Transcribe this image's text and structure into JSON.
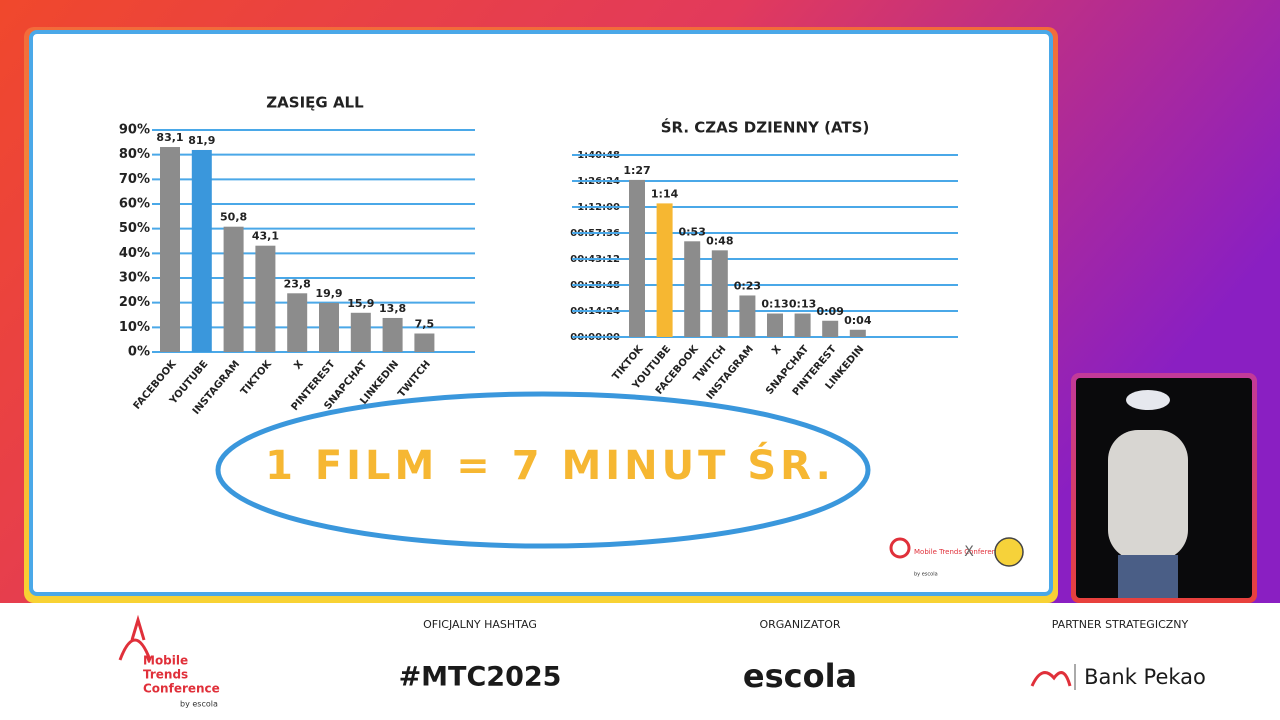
{
  "chart_data": [
    {
      "type": "bar",
      "title": "ZASIĘG ALL",
      "categories": [
        "FACEBOOK",
        "YOUTUBE",
        "INSTAGRAM",
        "TIKTOK",
        "X",
        "PINTEREST",
        "SNAPCHAT",
        "LINKEDIN",
        "TWITCH"
      ],
      "values": [
        83.1,
        81.9,
        50.8,
        43.1,
        23.8,
        19.9,
        15.9,
        13.8,
        7.5
      ],
      "value_labels": [
        "83,1",
        "81,9",
        "50,8",
        "43,1",
        "23,8",
        "19,9",
        "15,9",
        "13,8",
        "7,5"
      ],
      "colors": [
        "#8c8c8c",
        "#3a97dc",
        "#8c8c8c",
        "#8c8c8c",
        "#8c8c8c",
        "#8c8c8c",
        "#8c8c8c",
        "#8c8c8c",
        "#8c8c8c"
      ],
      "ylim": [
        0,
        90
      ],
      "yticks": [
        {
          "value": 0,
          "label": "0%"
        },
        {
          "value": 10,
          "label": "10%"
        },
        {
          "value": 20,
          "label": "20%"
        },
        {
          "value": 30,
          "label": "30%"
        },
        {
          "value": 40,
          "label": "40%"
        },
        {
          "value": 50,
          "label": "50%"
        },
        {
          "value": 60,
          "label": "60%"
        },
        {
          "value": 70,
          "label": "70%"
        },
        {
          "value": 80,
          "label": "80%"
        },
        {
          "value": 90,
          "label": "90%"
        }
      ],
      "grid": true
    },
    {
      "type": "bar",
      "title": "ŚR. CZAS DZIENNY (ATS)",
      "categories": [
        "TIKTOK",
        "YOUTUBE",
        "FACEBOOK",
        "TWITCH",
        "INSTAGRAM",
        "X",
        "SNAPCHAT",
        "PINTEREST",
        "LINKEDIN"
      ],
      "values": [
        87,
        74,
        53,
        48,
        23,
        13,
        13,
        9,
        4
      ],
      "value_labels": [
        "1:27",
        "1:14",
        "0:53",
        "0:48",
        "0:23",
        "0:13",
        "0:13",
        "0:09",
        "0:04"
      ],
      "colors": [
        "#8c8c8c",
        "#f6b732",
        "#8c8c8c",
        "#8c8c8c",
        "#8c8c8c",
        "#8c8c8c",
        "#8c8c8c",
        "#8c8c8c",
        "#8c8c8c"
      ],
      "ylim": [
        0,
        100.8
      ],
      "yticks": [
        {
          "value": 0,
          "label": "00:00:00"
        },
        {
          "value": 14.4,
          "label": "00:14:24"
        },
        {
          "value": 28.8,
          "label": "00:28:48"
        },
        {
          "value": 43.2,
          "label": "00:43:12"
        },
        {
          "value": 57.6,
          "label": "00:57:36"
        },
        {
          "value": 72,
          "label": "1:12:00"
        },
        {
          "value": 86.4,
          "label": "1:26:24"
        },
        {
          "value": 100.8,
          "label": "1:40:48"
        }
      ],
      "grid": true
    }
  ],
  "annotation": "1 FILM = 7 MINUT ŚR.",
  "board_logo": {
    "name": "Mobile Trends Conference",
    "by": "by escola",
    "separator": "X"
  },
  "footer": {
    "logo": {
      "line1": "Mobile",
      "line2": "Trends",
      "line3": "Conference",
      "by": "by escola"
    },
    "hashtag": {
      "label": "OFICJALNY HASHTAG",
      "value": "#MTC2025"
    },
    "organizer": {
      "label": "ORGANIZATOR",
      "value": "escola"
    },
    "partner": {
      "label": "PARTNER STRATEGICZNY",
      "value": "Bank Pekao"
    }
  }
}
